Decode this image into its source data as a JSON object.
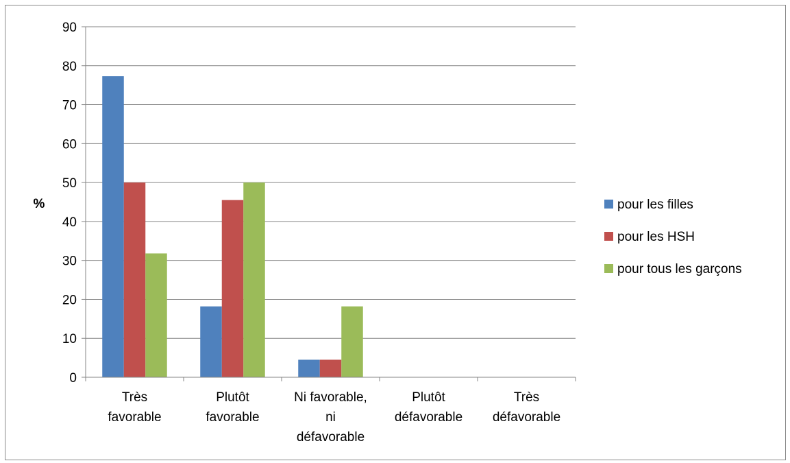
{
  "chart_data": {
    "type": "bar",
    "title": "",
    "xlabel": "",
    "ylabel": "%",
    "ylim": [
      0,
      90
    ],
    "yticks": [
      0,
      10,
      20,
      30,
      40,
      50,
      60,
      70,
      80,
      90
    ],
    "grid": true,
    "legend_position": "right",
    "categories": [
      [
        "Très",
        "favorable"
      ],
      [
        "Plutôt",
        "favorable"
      ],
      [
        "Ni favorable,",
        "ni",
        "défavorable"
      ],
      [
        "Plutôt",
        "défavorable"
      ],
      [
        "Très",
        "défavorable"
      ]
    ],
    "series": [
      {
        "name": "pour les filles",
        "color": "#4f81bd",
        "values": [
          77.3,
          18.2,
          4.5,
          0,
          0
        ]
      },
      {
        "name": "pour les HSH",
        "color": "#c0504d",
        "values": [
          50,
          45.5,
          4.5,
          0,
          0
        ]
      },
      {
        "name": "pour tous les garçons",
        "color": "#9bbb59",
        "values": [
          31.8,
          50,
          18.2,
          0,
          0
        ]
      }
    ]
  }
}
